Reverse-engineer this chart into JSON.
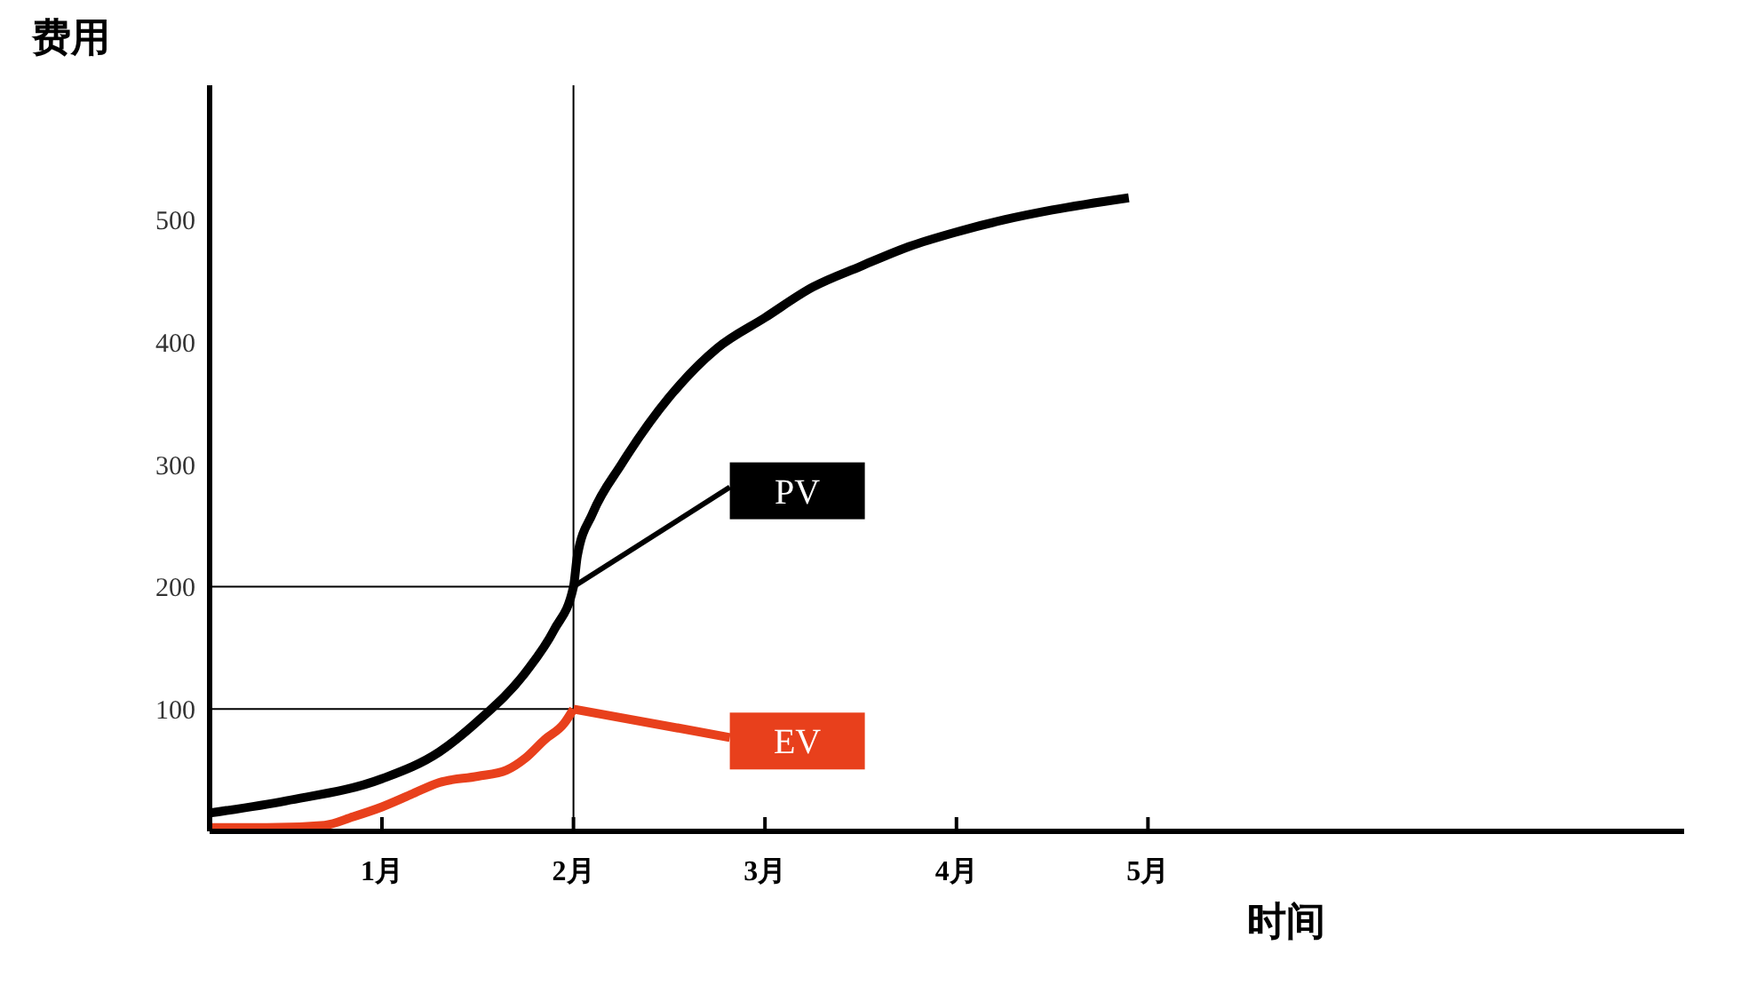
{
  "chart_data": {
    "type": "line",
    "xlabel": "时间",
    "ylabel": "费用",
    "xlim": [
      0.1,
      7.8
    ],
    "xticks": [
      {
        "value": 1,
        "label": "1月"
      },
      {
        "value": 2,
        "label": "2月"
      },
      {
        "value": 3,
        "label": "3月"
      },
      {
        "value": 4,
        "label": "4月"
      },
      {
        "value": 5,
        "label": "5月"
      }
    ],
    "ylim": [
      0,
      610
    ],
    "yticks": [
      100,
      200,
      300,
      400,
      500
    ],
    "legend": "bottom left",
    "marker": "none",
    "line_style": "solid",
    "series": [
      {
        "name": "PV",
        "color": "#000000",
        "x": [
          0.1,
          0.5,
          1,
          1.3,
          1.5,
          1.75,
          1.9,
          2,
          2.02,
          2.1,
          2.25,
          2.5,
          2.75,
          3,
          3.25,
          3.5,
          3.75,
          4,
          4.25,
          4.5,
          4.9
        ],
        "values": [
          15,
          25,
          43,
          65,
          90,
          130,
          165,
          200,
          225,
          260,
          300,
          355,
          395,
          420,
          445,
          462,
          478,
          490,
          500,
          508,
          518
        ]
      },
      {
        "name": "EV",
        "color": "#e8401c",
        "x": [
          0.1,
          0.4,
          0.7,
          0.85,
          1,
          1.15,
          1.3,
          1.5,
          1.65,
          1.75,
          1.85,
          1.95,
          2
        ],
        "values": [
          3,
          3,
          5,
          12,
          20,
          30,
          40,
          45,
          50,
          60,
          75,
          88,
          100
        ]
      }
    ],
    "ref_lines": [
      {
        "axis": "x",
        "value": 2,
        "color": "#000000"
      },
      {
        "axis": "y",
        "value": 200,
        "color": "#000000"
      },
      {
        "axis": "y",
        "value": 100,
        "color": "#000000"
      }
    ]
  }
}
